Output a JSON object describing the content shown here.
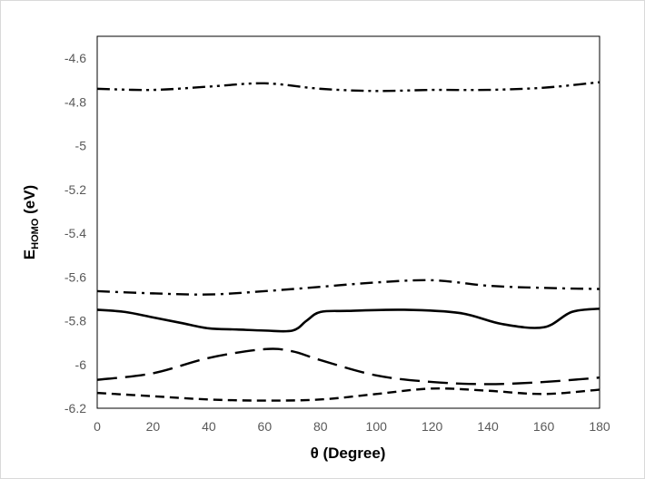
{
  "chart_data": {
    "type": "line",
    "xlabel": "θ (Degree)",
    "ylabel_main": "E",
    "ylabel_sub": "HOMO",
    "ylabel_unit": " (eV)",
    "xlim": [
      0,
      180
    ],
    "ylim": [
      -6.2,
      -4.5
    ],
    "xticks": [
      0,
      20,
      40,
      60,
      80,
      100,
      120,
      140,
      160,
      180
    ],
    "yticks": [
      -4.6,
      -4.8,
      -5,
      -5.2,
      -5.4,
      -5.6,
      -5.8,
      -6,
      -6.2
    ],
    "grid": false,
    "line_color": "#000000",
    "series": [
      {
        "style": "dash-dot-dot",
        "x": [
          0,
          20,
          40,
          60,
          80,
          100,
          120,
          140,
          160,
          180
        ],
        "y": [
          -4.74,
          -4.745,
          -4.73,
          -4.715,
          -4.74,
          -4.75,
          -4.745,
          -4.745,
          -4.735,
          -4.71
        ]
      },
      {
        "style": "dash-dot",
        "x": [
          0,
          20,
          40,
          60,
          80,
          100,
          120,
          140,
          160,
          180
        ],
        "y": [
          -5.665,
          -5.675,
          -5.68,
          -5.665,
          -5.645,
          -5.625,
          -5.615,
          -5.64,
          -5.65,
          -5.655
        ]
      },
      {
        "style": "solid",
        "x": [
          0,
          10,
          20,
          30,
          40,
          50,
          60,
          70,
          75,
          80,
          90,
          110,
          130,
          145,
          160,
          170,
          180
        ],
        "y": [
          -5.75,
          -5.76,
          -5.785,
          -5.81,
          -5.835,
          -5.84,
          -5.845,
          -5.845,
          -5.8,
          -5.76,
          -5.755,
          -5.75,
          -5.765,
          -5.815,
          -5.83,
          -5.76,
          -5.745
        ]
      },
      {
        "style": "long-dash",
        "x": [
          0,
          20,
          40,
          60,
          70,
          80,
          100,
          120,
          140,
          160,
          180
        ],
        "y": [
          -6.07,
          -6.04,
          -5.97,
          -5.93,
          -5.94,
          -5.98,
          -6.05,
          -6.08,
          -6.09,
          -6.08,
          -6.06
        ]
      },
      {
        "style": "short-dash",
        "x": [
          0,
          20,
          40,
          60,
          80,
          100,
          120,
          140,
          160,
          180
        ],
        "y": [
          -6.13,
          -6.145,
          -6.16,
          -6.165,
          -6.16,
          -6.135,
          -6.11,
          -6.12,
          -6.135,
          -6.115
        ]
      }
    ]
  }
}
